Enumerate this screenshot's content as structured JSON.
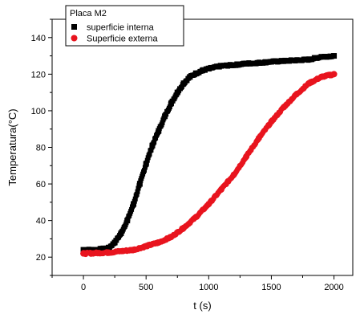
{
  "chart_data": {
    "type": "scatter",
    "title": "",
    "xlabel": "t (s)",
    "ylabel": "Temperatura(°C)",
    "xlim": [
      -250,
      2150
    ],
    "ylim": [
      10,
      150
    ],
    "xticks": [
      0,
      500,
      1000,
      1500,
      2000
    ],
    "yticks": [
      20,
      40,
      60,
      80,
      100,
      120,
      140
    ],
    "grid": false,
    "legend": {
      "title": "Placa M2",
      "placement": "top-left"
    },
    "series": [
      {
        "name": "superficie interna",
        "color": "#000000",
        "marker": "square",
        "x": [
          0,
          100,
          200,
          250,
          300,
          350,
          400,
          450,
          500,
          550,
          600,
          650,
          700,
          750,
          800,
          850,
          900,
          950,
          1000,
          1100,
          1200,
          1300,
          1400,
          1500,
          1600,
          1700,
          1800,
          1900,
          2000
        ],
        "y": [
          24,
          24,
          25,
          28,
          33,
          40,
          49,
          60,
          71,
          81,
          89,
          97,
          104,
          110,
          115,
          118.5,
          120.5,
          122,
          123,
          124.5,
          125,
          125.8,
          126.2,
          126.8,
          127.2,
          127.6,
          128,
          129.5,
          130
        ]
      },
      {
        "name": "Superficie externa",
        "color": "#e8141e",
        "marker": "circle",
        "x": [
          0,
          200,
          400,
          500,
          600,
          700,
          800,
          900,
          1000,
          1100,
          1200,
          1300,
          1400,
          1500,
          1600,
          1700,
          1800,
          1900,
          2000
        ],
        "y": [
          22,
          22.5,
          24,
          26,
          28,
          31,
          36,
          42,
          49,
          57,
          65,
          75,
          85,
          94,
          102,
          109,
          115,
          118.5,
          120
        ]
      }
    ]
  }
}
